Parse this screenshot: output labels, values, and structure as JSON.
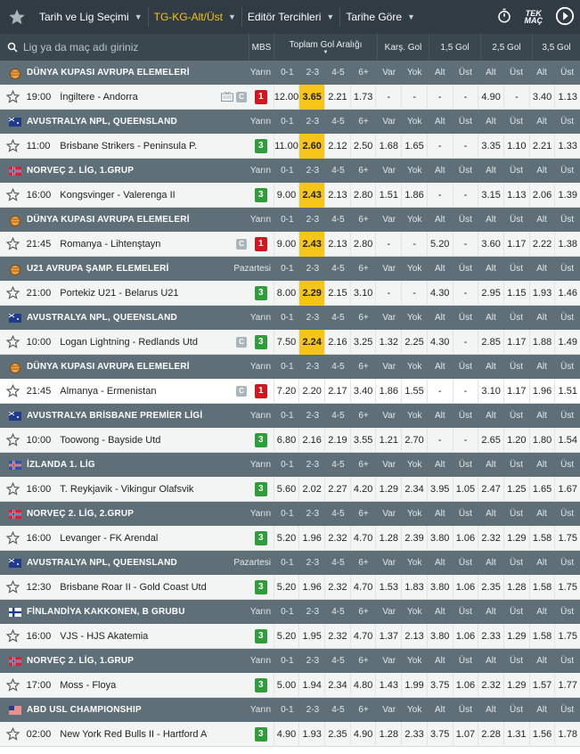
{
  "nav": {
    "items": [
      {
        "label": "Tarih ve Lig Seçimi",
        "active": false
      },
      {
        "label": "TG-KG-Alt/Üst",
        "active": true
      },
      {
        "label": "Editör Tercihleri",
        "active": false
      },
      {
        "label": "Tarihe Göre",
        "active": false
      }
    ],
    "tek_mac_line1": "TEK",
    "tek_mac_line2": "MAÇ"
  },
  "search": {
    "placeholder": "Lig ya da maç adı giriniz"
  },
  "headers": {
    "mbs": "MBS",
    "groups": [
      {
        "title": "Toplam Gol Aralığı",
        "cols": [
          "0-1",
          "2-3",
          "4-5",
          "6+"
        ]
      },
      {
        "title": "Karş. Gol",
        "cols": [
          "Var",
          "Yok"
        ]
      },
      {
        "title": "1,5 Gol",
        "cols": [
          "Alt",
          "Üst"
        ]
      },
      {
        "title": "2,5 Gol",
        "cols": [
          "Alt",
          "Üst"
        ]
      },
      {
        "title": "3,5 Gol",
        "cols": [
          "Alt",
          "Üst"
        ]
      }
    ]
  },
  "sub_headers": [
    "0-1",
    "2-3",
    "4-5",
    "6+",
    "Var",
    "Yok",
    "Alt",
    "Üst",
    "Alt",
    "Üst",
    "Alt",
    "Üst"
  ],
  "colors": {
    "mbs_3": "#2e9d3a",
    "mbs_1": "#d0161e",
    "highlight": "#f5c518"
  },
  "rows": [
    {
      "league": "DÜNYA KUPASI AVRUPA ELEMELERİ",
      "flag": "world",
      "when": "Yarın",
      "time": "19:00",
      "teams": "İngiltere - Andorra",
      "tv": true,
      "c": true,
      "mbs": "1",
      "odds": [
        "12.00",
        "3.65",
        "2.21",
        "1.73",
        "-",
        "-",
        "-",
        "-",
        "4.90",
        "-",
        "3.40",
        "1.13"
      ],
      "white": false
    },
    {
      "league": "AVUSTRALYA NPL, QUEENSLAND",
      "flag": "au",
      "when": "Yarın",
      "time": "11:00",
      "teams": "Brisbane Strikers - Peninsula P.",
      "tv": false,
      "c": false,
      "mbs": "3",
      "odds": [
        "11.00",
        "2.60",
        "2.12",
        "2.50",
        "1.68",
        "1.65",
        "-",
        "-",
        "3.35",
        "1.10",
        "2.21",
        "1.33"
      ],
      "white": false
    },
    {
      "league": "NORVEÇ 2. LİG, 1.GRUP",
      "flag": "no",
      "when": "Yarın",
      "time": "16:00",
      "teams": "Kongsvinger - Valerenga II",
      "tv": false,
      "c": false,
      "mbs": "3",
      "odds": [
        "9.00",
        "2.43",
        "2.13",
        "2.80",
        "1.51",
        "1.86",
        "-",
        "-",
        "3.15",
        "1.13",
        "2.06",
        "1.39"
      ],
      "white": false
    },
    {
      "league": "DÜNYA KUPASI AVRUPA ELEMELERİ",
      "flag": "world",
      "when": "Yarın",
      "time": "21:45",
      "teams": "Romanya - Lihtenştayn",
      "tv": false,
      "c": true,
      "mbs": "1",
      "odds": [
        "9.00",
        "2.43",
        "2.13",
        "2.80",
        "-",
        "-",
        "5.20",
        "-",
        "3.60",
        "1.17",
        "2.22",
        "1.38"
      ],
      "white": false
    },
    {
      "league": "U21 AVRUPA ŞAMP. ELEMELERİ",
      "flag": "world",
      "when": "Pazartesi",
      "time": "21:00",
      "teams": "Portekiz U21 - Belarus U21",
      "tv": false,
      "c": false,
      "mbs": "3",
      "odds": [
        "8.00",
        "2.29",
        "2.15",
        "3.10",
        "-",
        "-",
        "4.30",
        "-",
        "2.95",
        "1.15",
        "1.93",
        "1.46"
      ],
      "white": false
    },
    {
      "league": "AVUSTRALYA NPL, QUEENSLAND",
      "flag": "au",
      "when": "Yarın",
      "time": "10:00",
      "teams": "Logan Lightning - Redlands Utd",
      "tv": false,
      "c": true,
      "mbs": "3",
      "odds": [
        "7.50",
        "2.24",
        "2.16",
        "3.25",
        "1.32",
        "2.25",
        "4.30",
        "-",
        "2.85",
        "1.17",
        "1.88",
        "1.49"
      ],
      "white": false
    },
    {
      "league": "DÜNYA KUPASI AVRUPA ELEMELERİ",
      "flag": "world",
      "when": "Yarın",
      "time": "21:45",
      "teams": "Almanya - Ermenistan",
      "tv": false,
      "c": true,
      "mbs": "1",
      "odds": [
        "7.20",
        "2.20",
        "2.17",
        "3.40",
        "1.86",
        "1.55",
        "-",
        "-",
        "3.10",
        "1.17",
        "1.96",
        "1.51"
      ],
      "white": true
    },
    {
      "league": "AVUSTRALYA BRİSBANE PREMİER LİGİ",
      "flag": "au",
      "when": "Yarın",
      "time": "10:00",
      "teams": "Toowong - Bayside Utd",
      "tv": false,
      "c": false,
      "mbs": "3",
      "odds": [
        "6.80",
        "2.16",
        "2.19",
        "3.55",
        "1.21",
        "2.70",
        "-",
        "-",
        "2.65",
        "1.20",
        "1.80",
        "1.54"
      ],
      "white": false
    },
    {
      "league": "İZLANDA 1. LİG",
      "flag": "is",
      "when": "Yarın",
      "time": "16:00",
      "teams": "T. Reykjavik - Vikingur Olafsvik",
      "tv": false,
      "c": false,
      "mbs": "3",
      "odds": [
        "5.60",
        "2.02",
        "2.27",
        "4.20",
        "1.29",
        "2.34",
        "3.95",
        "1.05",
        "2.47",
        "1.25",
        "1.65",
        "1.67"
      ],
      "white": false
    },
    {
      "league": "NORVEÇ 2. LİG, 2.GRUP",
      "flag": "no",
      "when": "Yarın",
      "time": "16:00",
      "teams": "Levanger - FK Arendal",
      "tv": false,
      "c": false,
      "mbs": "3",
      "odds": [
        "5.20",
        "1.96",
        "2.32",
        "4.70",
        "1.28",
        "2.39",
        "3.80",
        "1.06",
        "2.32",
        "1.29",
        "1.58",
        "1.75"
      ],
      "white": false
    },
    {
      "league": "AVUSTRALYA NPL, QUEENSLAND",
      "flag": "au",
      "when": "Pazartesi",
      "time": "12:30",
      "teams": "Brisbane Roar II - Gold Coast Utd",
      "tv": false,
      "c": false,
      "mbs": "3",
      "odds": [
        "5.20",
        "1.96",
        "2.32",
        "4.70",
        "1.53",
        "1.83",
        "3.80",
        "1.06",
        "2.35",
        "1.28",
        "1.58",
        "1.75"
      ],
      "white": false
    },
    {
      "league": "FİNLANDİYA KAKKONEN, B GRUBU",
      "flag": "fi",
      "when": "Yarın",
      "time": "16:00",
      "teams": "VJS - HJS Akatemia",
      "tv": false,
      "c": false,
      "mbs": "3",
      "odds": [
        "5.20",
        "1.95",
        "2.32",
        "4.70",
        "1.37",
        "2.13",
        "3.80",
        "1.06",
        "2.33",
        "1.29",
        "1.58",
        "1.75"
      ],
      "white": false
    },
    {
      "league": "NORVEÇ 2. LİG, 1.GRUP",
      "flag": "no",
      "when": "Yarın",
      "time": "17:00",
      "teams": "Moss - Floya",
      "tv": false,
      "c": false,
      "mbs": "3",
      "odds": [
        "5.00",
        "1.94",
        "2.34",
        "4.80",
        "1.43",
        "1.99",
        "3.75",
        "1.06",
        "2.32",
        "1.29",
        "1.57",
        "1.77"
      ],
      "white": false
    },
    {
      "league": "ABD USL CHAMPIONSHIP",
      "flag": "us",
      "when": "Yarın",
      "time": "02:00",
      "teams": "New York Red Bulls II - Hartford Ath",
      "tv": false,
      "c": false,
      "mbs": "3",
      "odds": [
        "4.90",
        "1.93",
        "2.35",
        "4.90",
        "1.28",
        "2.33",
        "3.75",
        "1.07",
        "2.28",
        "1.31",
        "1.56",
        "1.78"
      ],
      "white": false
    }
  ]
}
